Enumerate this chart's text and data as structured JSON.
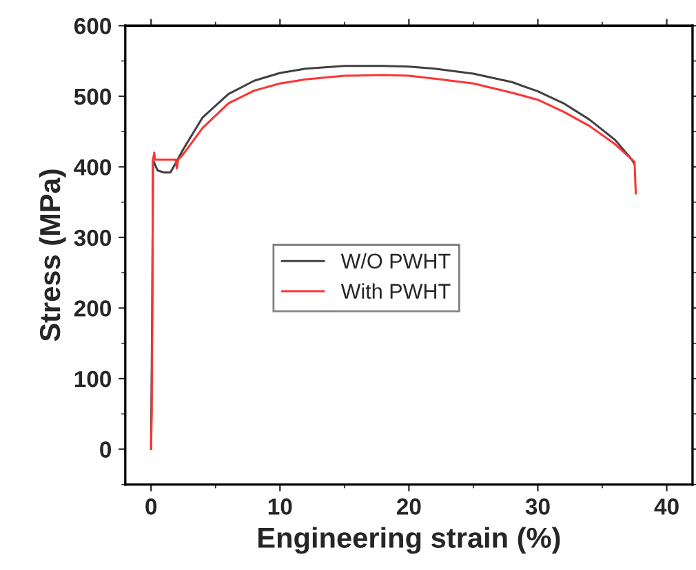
{
  "chart_data": {
    "type": "line",
    "xlabel": "Engineering strain (%)",
    "ylabel": "Stress (MPa)",
    "xlim": [
      -2,
      42
    ],
    "ylim": [
      -50,
      600
    ],
    "xticks": [
      0,
      10,
      20,
      30,
      40
    ],
    "yticks": [
      0,
      100,
      200,
      300,
      400,
      500,
      600
    ],
    "grid": false,
    "legend": "center",
    "marker": "none",
    "line_style": "solid",
    "series": [
      {
        "name": "W/O PWHT",
        "color": "#404040",
        "x": [
          0,
          0.1,
          0.15,
          0.5,
          1,
          1.5,
          1.9,
          2.5,
          4,
          6,
          8,
          10,
          12,
          15,
          18,
          20,
          22,
          25,
          28,
          30,
          32,
          34,
          36,
          37.3,
          37.5
        ],
        "values": [
          0,
          220,
          410,
          395,
          392,
          392,
          405,
          425,
          470,
          503,
          522,
          533,
          539,
          543,
          543,
          542,
          539,
          532,
          520,
          507,
          490,
          467,
          438,
          410,
          404
        ]
      },
      {
        "name": "With PWHT",
        "color": "#ff3333",
        "x": [
          0,
          0.05,
          0.1,
          0.15,
          0.25,
          0.3,
          1.9,
          2,
          2.1,
          2.5,
          4,
          6,
          8,
          10,
          12,
          15,
          18,
          20,
          22,
          25,
          28,
          30,
          32,
          34,
          36,
          37.5,
          37.6
        ],
        "values": [
          0,
          50,
          220,
          410,
          420,
          410,
          410,
          398,
          410,
          418,
          455,
          490,
          508,
          518,
          524,
          529,
          530,
          529,
          525,
          518,
          505,
          495,
          478,
          458,
          432,
          407,
          362
        ]
      }
    ]
  }
}
